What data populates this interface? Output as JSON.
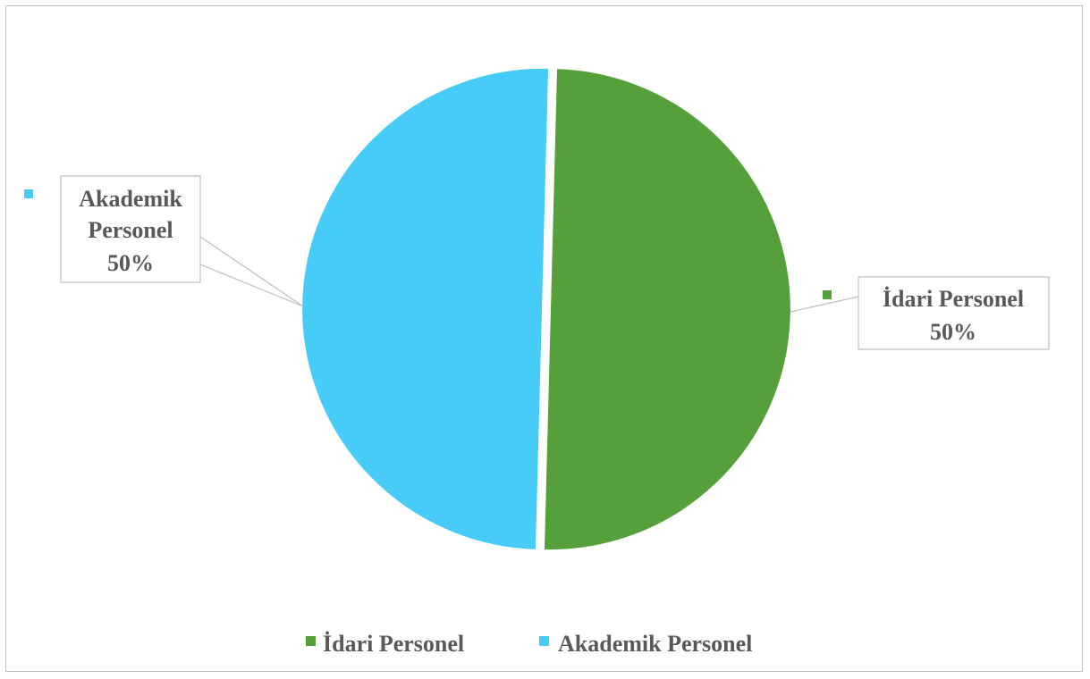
{
  "chart_data": {
    "type": "pie",
    "title": "",
    "categories": [
      "İdari Personel",
      "Akademik Personel"
    ],
    "values": [
      50,
      50
    ],
    "data_labels": [
      "50%",
      "50%"
    ],
    "colors": [
      "#55a03b",
      "#47cbf7"
    ],
    "legend": {
      "position": "bottom",
      "entries": [
        "İdari Personel",
        "Akademik Personel"
      ]
    },
    "callouts": [
      {
        "category": "İdari Personel",
        "lines": [
          "İdari Personel",
          "50%"
        ]
      },
      {
        "category": "Akademik Personel",
        "lines": [
          "Akademik",
          "Personel",
          "50%"
        ]
      }
    ]
  }
}
